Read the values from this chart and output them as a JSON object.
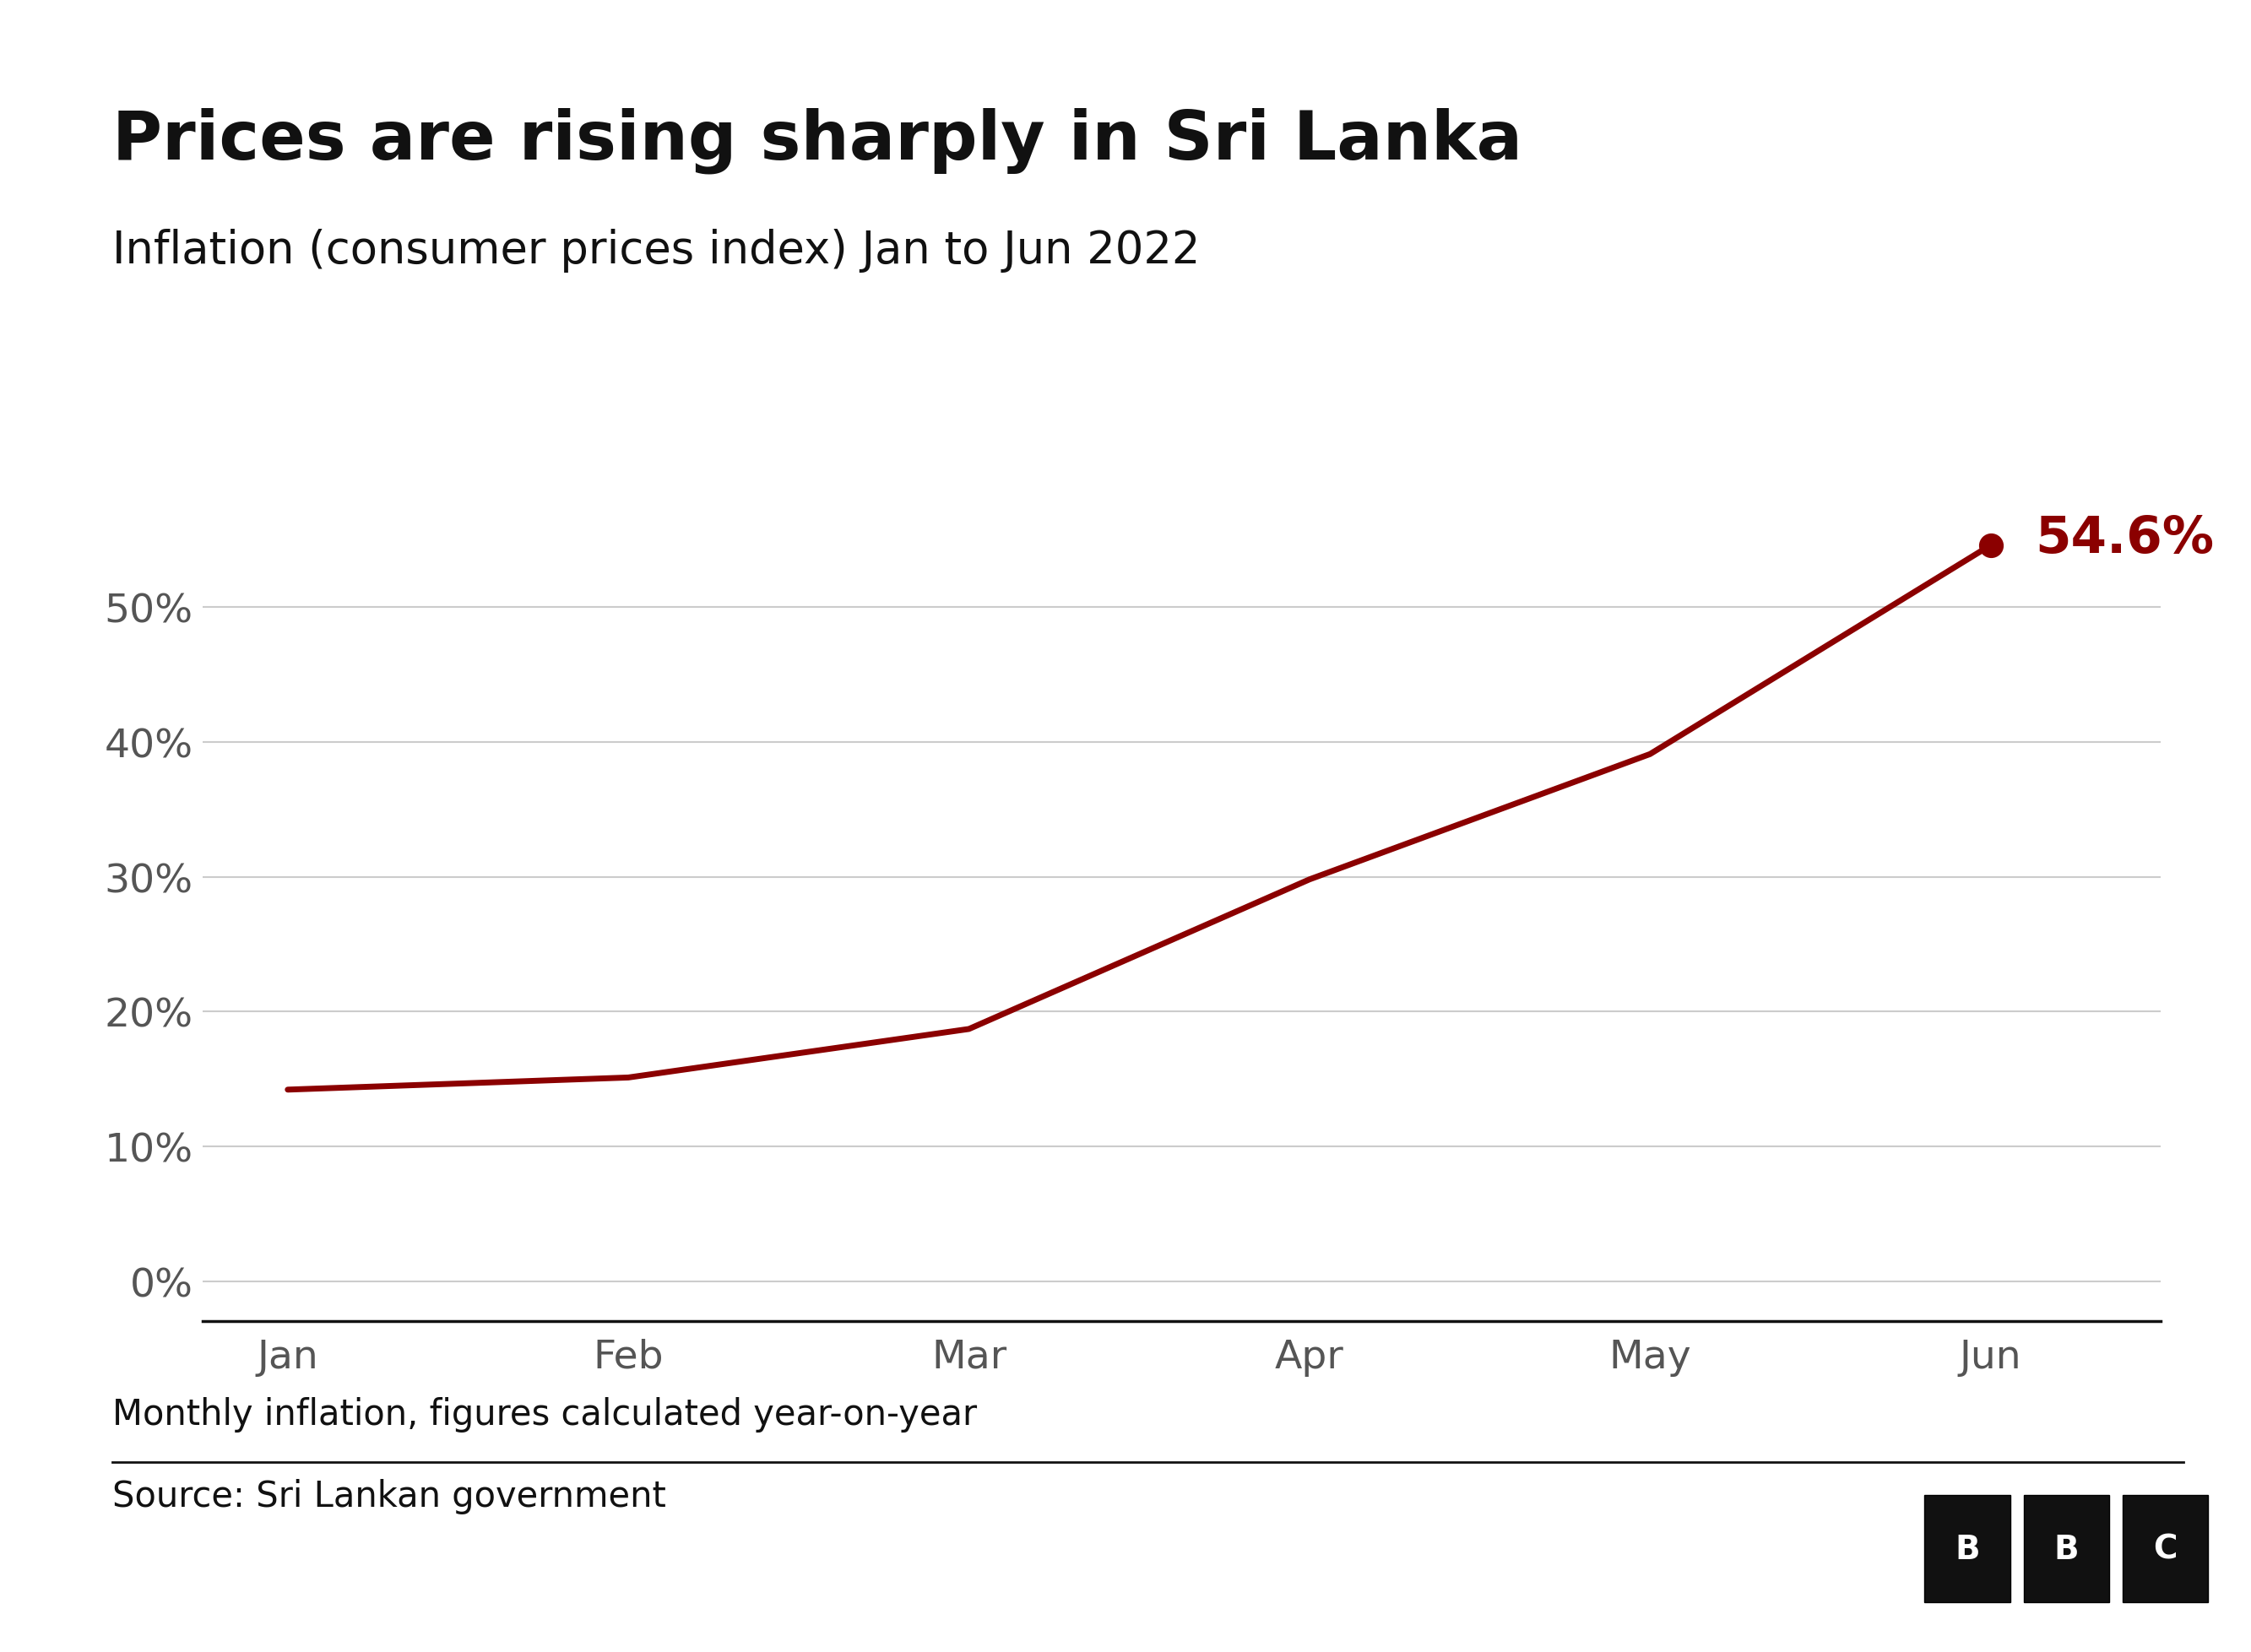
{
  "title": "Prices are rising sharply in Sri Lanka",
  "subtitle": "Inflation (consumer prices index) Jan to Jun 2022",
  "months": [
    "Jan",
    "Feb",
    "Mar",
    "Apr",
    "May",
    "Jun"
  ],
  "values": [
    14.2,
    15.1,
    18.7,
    29.8,
    39.1,
    54.6
  ],
  "line_color": "#8B0000",
  "dot_color": "#8B0000",
  "annotation_text": "54.6%",
  "annotation_color": "#8B0000",
  "ylabel_ticks": [
    0,
    10,
    20,
    30,
    40,
    50
  ],
  "ylim": [
    -3,
    62
  ],
  "footnote": "Monthly inflation, figures calculated year-on-year",
  "source": "Source: Sri Lankan government",
  "background_color": "#ffffff",
  "grid_color": "#cccccc",
  "title_fontsize": 58,
  "subtitle_fontsize": 38,
  "tick_fontsize": 34,
  "annotation_fontsize": 44,
  "footnote_fontsize": 30,
  "source_fontsize": 30,
  "bbc_letters": [
    "B",
    "B",
    "C"
  ]
}
